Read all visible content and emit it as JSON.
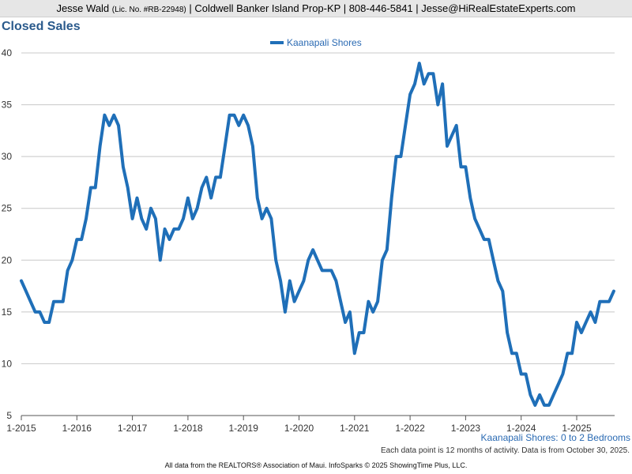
{
  "header": {
    "agent": "Jesse Wald",
    "license": "(Lic. No. #RB-22948)",
    "rest": "| Coldwell Banker Island Prop-KP | 808-446-5841 | Jesse@HiRealEstateExperts.com"
  },
  "title": "Closed Sales",
  "subtitle": "Kaanapali Shores: 0 to 2 Bedrooms",
  "note": "Each data point is 12 months of activity. Data is from October 30, 2025.",
  "footer": "All data from the REALTORS® Association of Maui. InfoSparks © 2025 ShowingTime Plus, LLC.",
  "colors": {
    "series": "#1f6fb8",
    "grid": "#c8c8c8",
    "title": "#2a5a8c"
  },
  "chart_data": {
    "type": "line",
    "title": "Closed Sales",
    "xlabel": "",
    "ylabel": "",
    "ylim": [
      5,
      40
    ],
    "yticks": [
      5,
      10,
      15,
      20,
      25,
      30,
      35,
      40
    ],
    "xticks": [
      "1-2015",
      "1-2016",
      "1-2017",
      "1-2018",
      "1-2019",
      "1-2020",
      "1-2021",
      "1-2022",
      "1-2023",
      "1-2024",
      "1-2025"
    ],
    "grid": true,
    "legend": "top-center",
    "x_start": "1-2015",
    "series": [
      {
        "name": "Kaanapali Shores",
        "values": [
          18,
          17,
          16,
          15,
          15,
          14,
          14,
          16,
          16,
          16,
          19,
          20,
          22,
          22,
          24,
          27,
          27,
          31,
          34,
          33,
          34,
          33,
          29,
          27,
          24,
          26,
          24,
          23,
          25,
          24,
          20,
          23,
          22,
          23,
          23,
          24,
          26,
          24,
          25,
          27,
          28,
          26,
          28,
          28,
          31,
          34,
          34,
          33,
          34,
          33,
          31,
          26,
          24,
          25,
          24,
          20,
          18,
          15,
          18,
          16,
          17,
          18,
          20,
          21,
          20,
          19,
          19,
          19,
          18,
          16,
          14,
          15,
          11,
          13,
          13,
          16,
          15,
          16,
          20,
          21,
          26,
          30,
          30,
          33,
          36,
          37,
          39,
          37,
          38,
          38,
          35,
          37,
          31,
          32,
          33,
          29,
          29,
          26,
          24,
          23,
          22,
          22,
          20,
          18,
          17,
          13,
          11,
          11,
          9,
          9,
          7,
          6,
          7,
          6,
          6,
          7,
          8,
          9,
          11,
          11,
          14,
          13,
          14,
          15,
          14,
          16,
          16,
          16,
          17
        ]
      }
    ]
  }
}
